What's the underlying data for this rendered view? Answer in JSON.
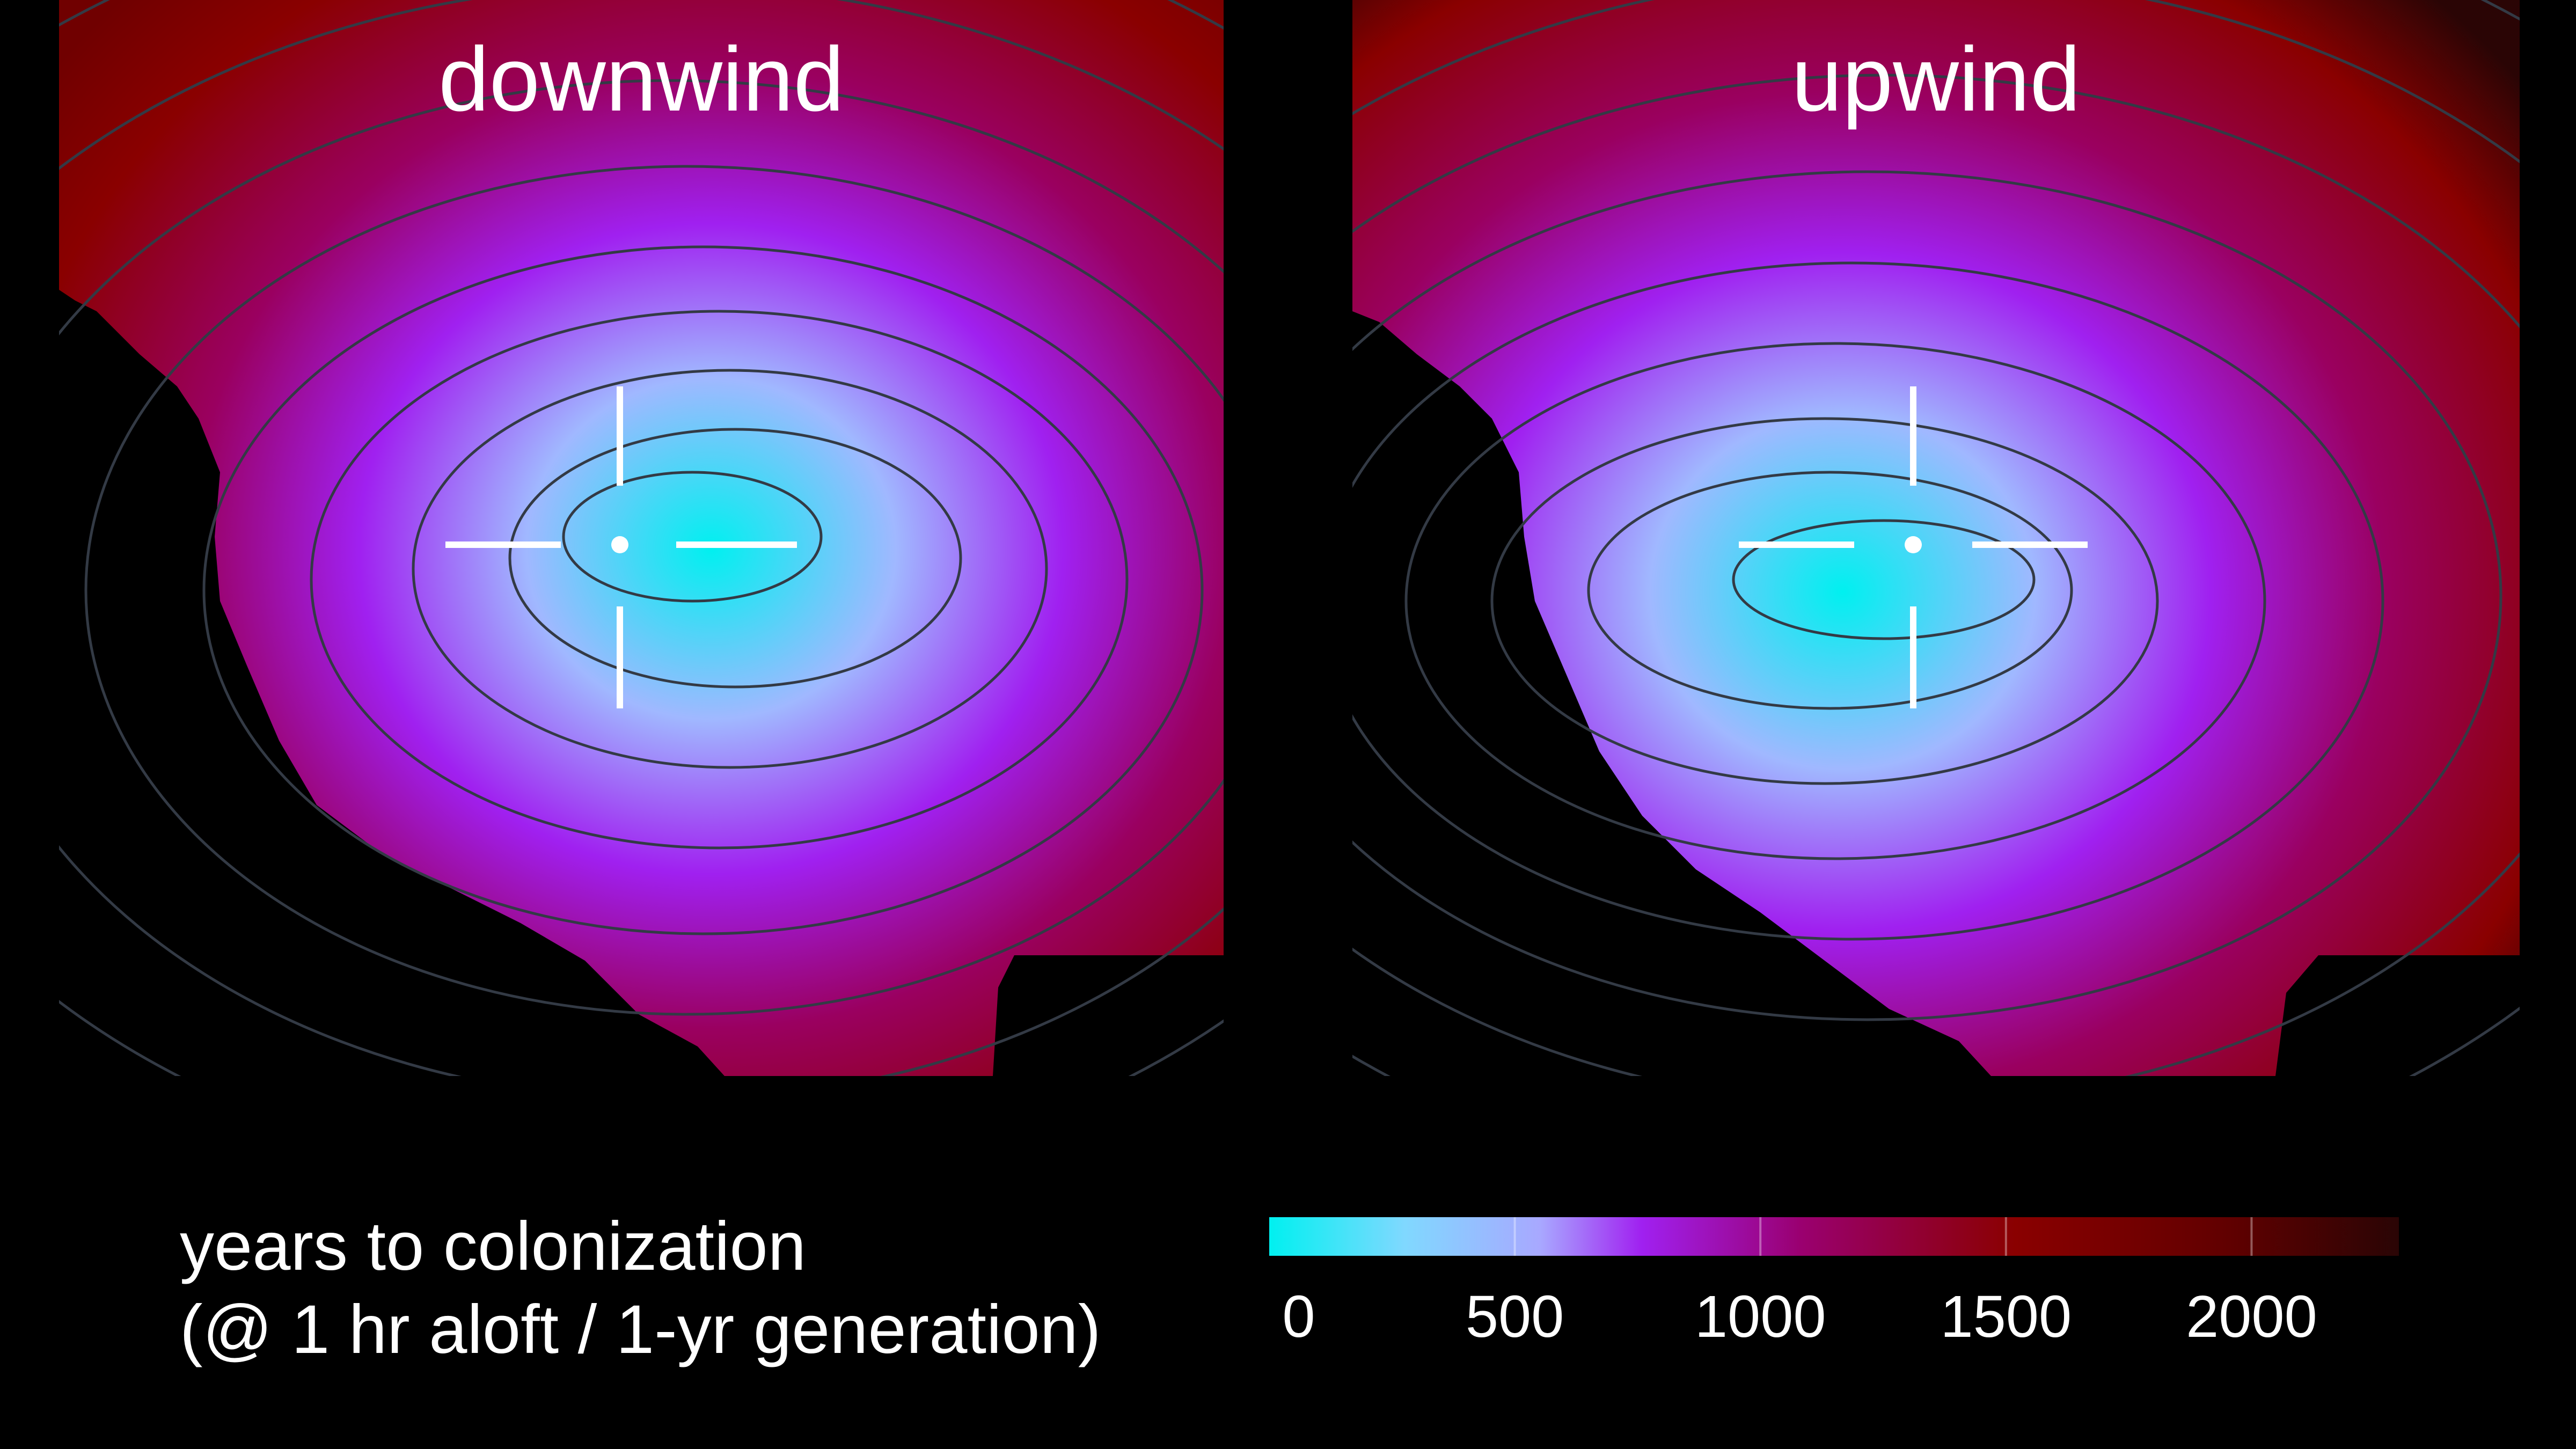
{
  "panels": [
    {
      "id": "downwind",
      "title": "downwind"
    },
    {
      "id": "upwind",
      "title": "upwind"
    }
  ],
  "legend": {
    "title_line1": "years to colonization",
    "title_line2": "(@ 1 hr aloft / 1-yr generation)",
    "ticks": [
      "0",
      "500",
      "1000",
      "1500",
      "2000"
    ],
    "range": [
      0,
      2300
    ]
  },
  "colors": {
    "low": "#00f0f0",
    "mid_low": "#a0b8ff",
    "mid": "#a020f0",
    "mid_high": "#9a0060",
    "high": "#8a0000",
    "max": "#2a0505",
    "contour": "#333a45",
    "marker": "#ffffff"
  }
}
